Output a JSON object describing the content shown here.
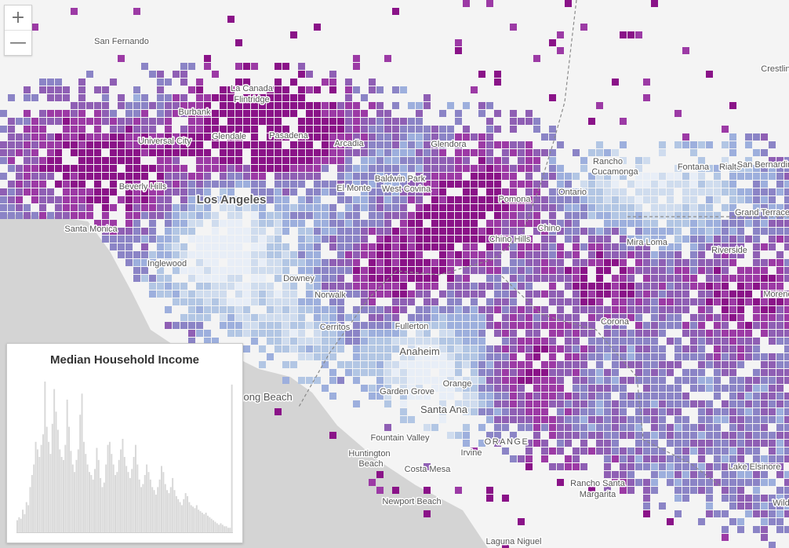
{
  "map": {
    "region": "ORANGE",
    "colors": {
      "background": "#f4f4f4",
      "ocean": "#d4d4d4",
      "ramp": [
        "#e8eef7",
        "#cfdcee",
        "#b2c6e4",
        "#9dafdd",
        "#8b84c6",
        "#8f5fb4",
        "#9c3aa5",
        "#8a1388"
      ]
    },
    "labels": {
      "los_angeles": "Los Angeles",
      "san_fernando": "San Fernando",
      "la_canada_1": "La Canada",
      "la_canada_2": "Flintridge",
      "burbank": "Burbank",
      "universal_city": "Universal City",
      "glendale": "Glendale",
      "pasadena": "Pasadena",
      "arcadia": "Arcadia",
      "glendora": "Glendora",
      "beverly_hills": "Beverly Hills",
      "santa_monica": "Santa Monica",
      "inglewood": "Inglewood",
      "el_monte": "El Monte",
      "baldwin_park": "Baldwin Park",
      "west_covina": "West Covina",
      "pomona": "Pomona",
      "rancho_cucamonga_1": "Rancho",
      "rancho_cucamonga_2": "Cucamonga",
      "ontario": "Ontario",
      "fontana": "Fontana",
      "rialto": "Rialto",
      "san_bernardino": "San Bernardino",
      "crestline": "Crestline",
      "grand_terrace": "Grand Terrace",
      "chino": "Chino",
      "chino_hills": "Chino Hills",
      "mira_loma": "Mira Loma",
      "riverside": "Riverside",
      "moreno": "Moreno",
      "downey": "Downey",
      "norwalk": "Norwalk",
      "cerritos": "Cerritos",
      "fullerton": "Fullerton",
      "anaheim": "Anaheim",
      "corona": "Corona",
      "orange": "Orange",
      "garden_grove": "Garden Grove",
      "santa_ana": "Santa Ana",
      "long_beach": "Long Beach",
      "fountain_valley": "Fountain Valley",
      "huntington_1": "Huntington",
      "huntington_2": "Beach",
      "irvine": "Irvine",
      "costa_mesa": "Costa Mesa",
      "newport_beach": "Newport Beach",
      "rancho_sm_1": "Rancho Santa",
      "rancho_sm_2": "Margarita",
      "laguna_niguel": "Laguna Niguel",
      "lake_elsinore": "Lake Elsinore",
      "wildomar": "Wild"
    }
  },
  "zoom": {
    "in_label": "+",
    "out_label": "—"
  },
  "panel": {
    "title": "Median Household Income",
    "bar_color": "#d8d8d8"
  },
  "chart_data": {
    "type": "bar",
    "title": "Median Household Income",
    "xlabel": "",
    "ylabel": "",
    "note": "relative bin heights (0-100), read from the histogram",
    "values": [
      8,
      10,
      9,
      15,
      12,
      20,
      18,
      30,
      38,
      45,
      60,
      55,
      50,
      58,
      65,
      100,
      70,
      60,
      52,
      72,
      95,
      80,
      68,
      55,
      50,
      48,
      58,
      88,
      70,
      54,
      45,
      40,
      48,
      55,
      78,
      92,
      60,
      52,
      45,
      40,
      38,
      35,
      42,
      56,
      48,
      36,
      30,
      33,
      45,
      58,
      60,
      52,
      45,
      38,
      40,
      48,
      55,
      62,
      50,
      44,
      40,
      36,
      42,
      50,
      58,
      45,
      35,
      30,
      32,
      38,
      45,
      40,
      35,
      30,
      28,
      25,
      30,
      35,
      44,
      40,
      32,
      28,
      26,
      30,
      36,
      28,
      24,
      22,
      20,
      18,
      22,
      26,
      24,
      20,
      18,
      17,
      16,
      18,
      15,
      14,
      13,
      12,
      13,
      11,
      10,
      9,
      8,
      7,
      6,
      5,
      6,
      5,
      4,
      4,
      3,
      3,
      98
    ]
  }
}
